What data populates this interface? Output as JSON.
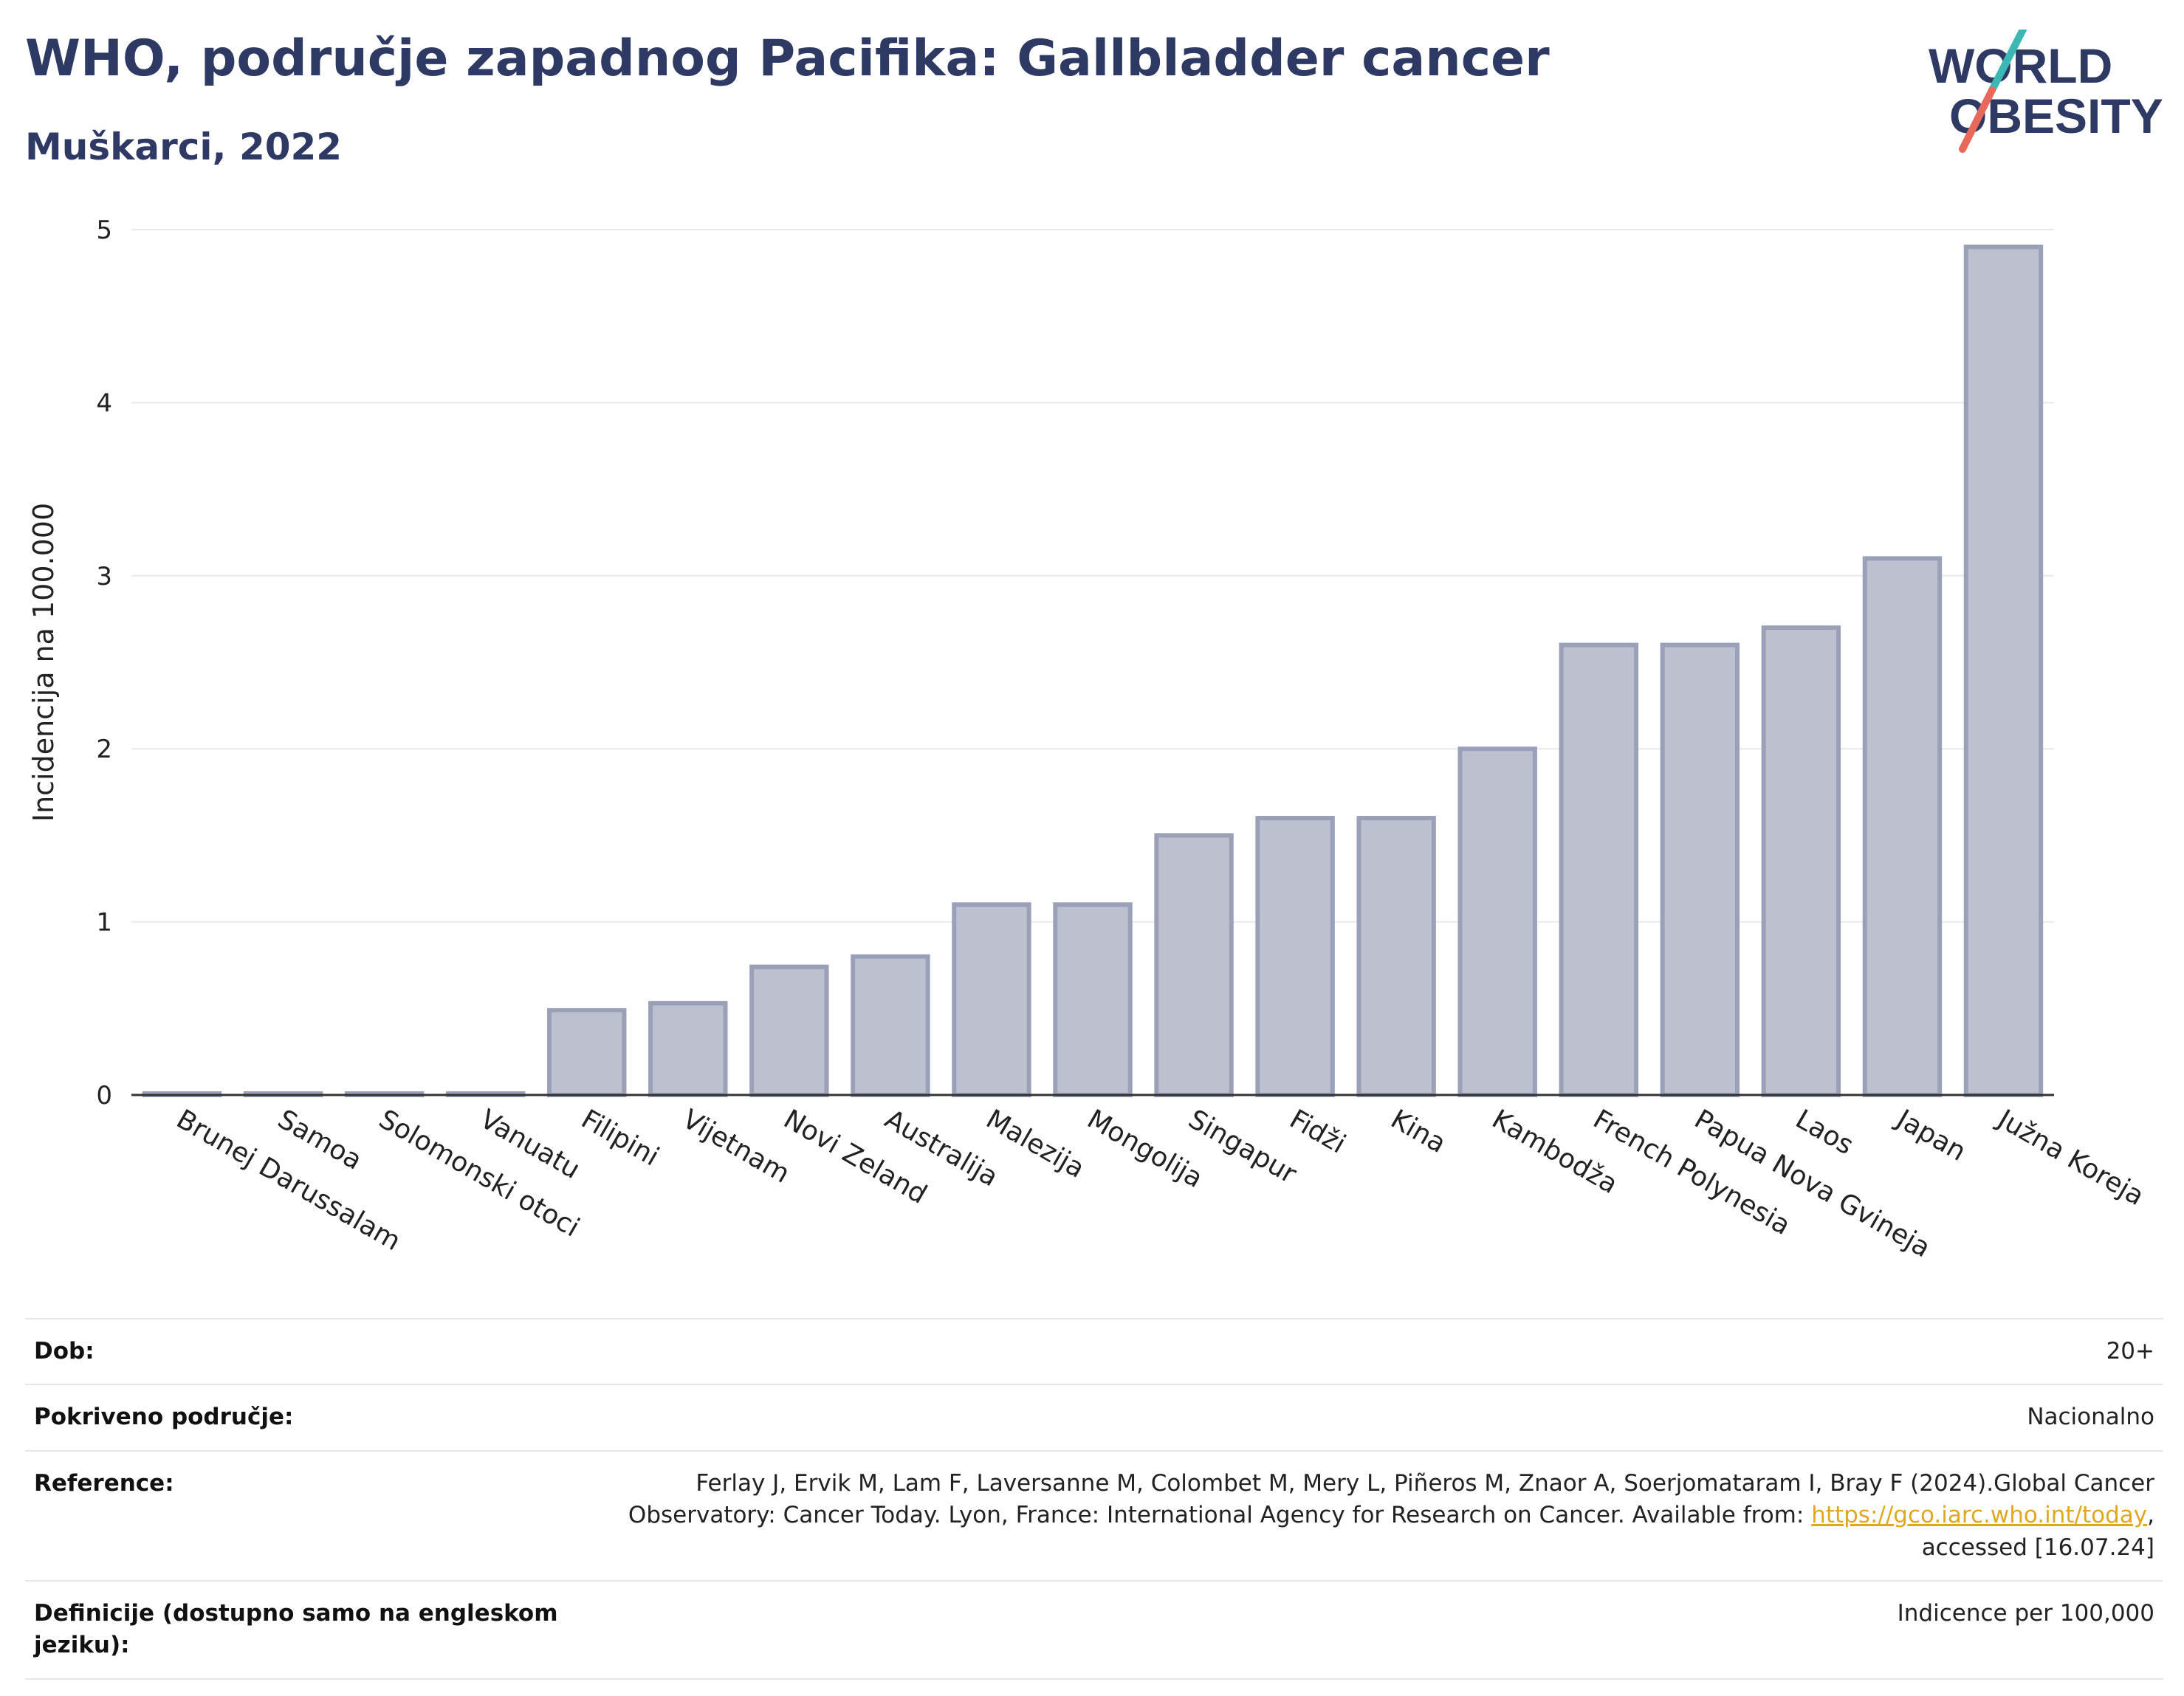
{
  "header": {
    "title": "WHO, područje zapadnog Pacifika: Gallbladder cancer",
    "subtitle": "Muškarci, 2022"
  },
  "logo": {
    "line1": "WORLD",
    "line2": "OBESITY"
  },
  "colors": {
    "bar_fill": "#bcc0cf",
    "bar_stroke": "#9aa0b8",
    "title": "#2e3a63",
    "link": "#e0a820",
    "logo_teal": "#3bb8b4",
    "logo_coral": "#e8695a"
  },
  "chart_data": {
    "type": "bar",
    "ylabel": "Incidencija na 100.000",
    "ylim": [
      0,
      5
    ],
    "yticks": [
      0,
      1,
      2,
      3,
      4,
      5
    ],
    "grid": true,
    "categories": [
      "Brunej Darussalam",
      "Samoa",
      "Solomonski otoci",
      "Vanuatu",
      "Filipini",
      "Vijetnam",
      "Novi Zeland",
      "Australija",
      "Malezija",
      "Mongolija",
      "Singapur",
      "Fidži",
      "Kina",
      "Kambodža",
      "French Polynesia",
      "Papua Nova Gvineja",
      "Laos",
      "Japan",
      "Južna Koreja"
    ],
    "values": [
      0,
      0,
      0,
      0,
      0.49,
      0.53,
      0.74,
      0.8,
      1.1,
      1.1,
      1.5,
      1.6,
      1.6,
      2.0,
      2.6,
      2.6,
      2.7,
      3.1,
      4.9
    ]
  },
  "meta": {
    "rows": [
      {
        "key": "Dob:",
        "value": "20+"
      },
      {
        "key": "Pokriveno područje:",
        "value": "Nacionalno"
      },
      {
        "key": "Reference:",
        "value": "Ferlay J, Ervik M, Lam F, Laversanne M, Colombet M, Mery L, Piñeros M, Znaor A, Soerjomataram I, Bray F (2024).Global Cancer Observatory: Cancer Today. Lyon, France: International Agency for Research on Cancer. Available from: ",
        "link": "https://gco.iarc.who.int/today",
        "suffix": ", accessed [16.07.24]"
      },
      {
        "key": "Definicije (dostupno samo na engleskom jeziku):",
        "value": "Indicence per 100,000"
      }
    ]
  }
}
